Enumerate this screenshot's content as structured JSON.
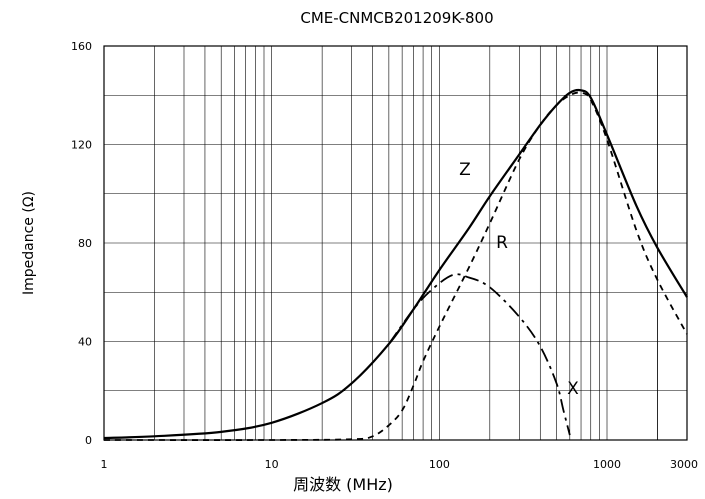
{
  "chart_data": {
    "type": "line",
    "title": "CME-CNMCB201209K-800",
    "xlabel": "周波数 (MHz)",
    "ylabel": "Impedance (Ω)",
    "x_scale": "log",
    "xlim": [
      1,
      3000
    ],
    "ylim": [
      0,
      160
    ],
    "grid": true,
    "x_tick_labels": [
      "1",
      "10",
      "100",
      "1000",
      "3000"
    ],
    "x_ticks": [
      1,
      10,
      100,
      1000,
      3000
    ],
    "y_tick_labels": [
      "0",
      "40",
      "80",
      "120",
      "160"
    ],
    "y_ticks": [
      0,
      40,
      80,
      120,
      160
    ],
    "series": [
      {
        "name": "Z",
        "line_style": "solid",
        "points": [
          [
            1,
            0.8
          ],
          [
            2,
            1.5
          ],
          [
            5,
            3.3
          ],
          [
            10,
            7
          ],
          [
            20,
            15
          ],
          [
            30,
            23
          ],
          [
            50,
            39
          ],
          [
            70,
            53
          ],
          [
            100,
            69
          ],
          [
            150,
            86
          ],
          [
            200,
            99
          ],
          [
            300,
            116
          ],
          [
            400,
            128
          ],
          [
            500,
            136
          ],
          [
            600,
            141
          ],
          [
            700,
            142
          ],
          [
            800,
            139
          ],
          [
            1000,
            124
          ],
          [
            1500,
            95
          ],
          [
            2000,
            78
          ],
          [
            3000,
            58
          ]
        ]
      },
      {
        "name": "R",
        "line_style": "dashed",
        "points": [
          [
            1,
            0
          ],
          [
            10,
            0
          ],
          [
            30,
            0.3
          ],
          [
            40,
            1.5
          ],
          [
            50,
            6
          ],
          [
            60,
            12
          ],
          [
            70,
            22
          ],
          [
            80,
            32
          ],
          [
            100,
            46
          ],
          [
            150,
            70
          ],
          [
            200,
            88
          ],
          [
            300,
            114
          ],
          [
            400,
            128
          ],
          [
            500,
            136
          ],
          [
            600,
            140
          ],
          [
            700,
            141
          ],
          [
            800,
            138
          ],
          [
            1000,
            122
          ],
          [
            1500,
            85
          ],
          [
            2000,
            65
          ],
          [
            3000,
            43
          ]
        ]
      },
      {
        "name": "X",
        "line_style": "dashdot",
        "points": [
          [
            50,
            39
          ],
          [
            70,
            53
          ],
          [
            90,
            61
          ],
          [
            120,
            67
          ],
          [
            150,
            66
          ],
          [
            200,
            62
          ],
          [
            300,
            50
          ],
          [
            400,
            38
          ],
          [
            500,
            23
          ],
          [
            550,
            12
          ],
          [
            600,
            2
          ]
        ]
      }
    ]
  }
}
